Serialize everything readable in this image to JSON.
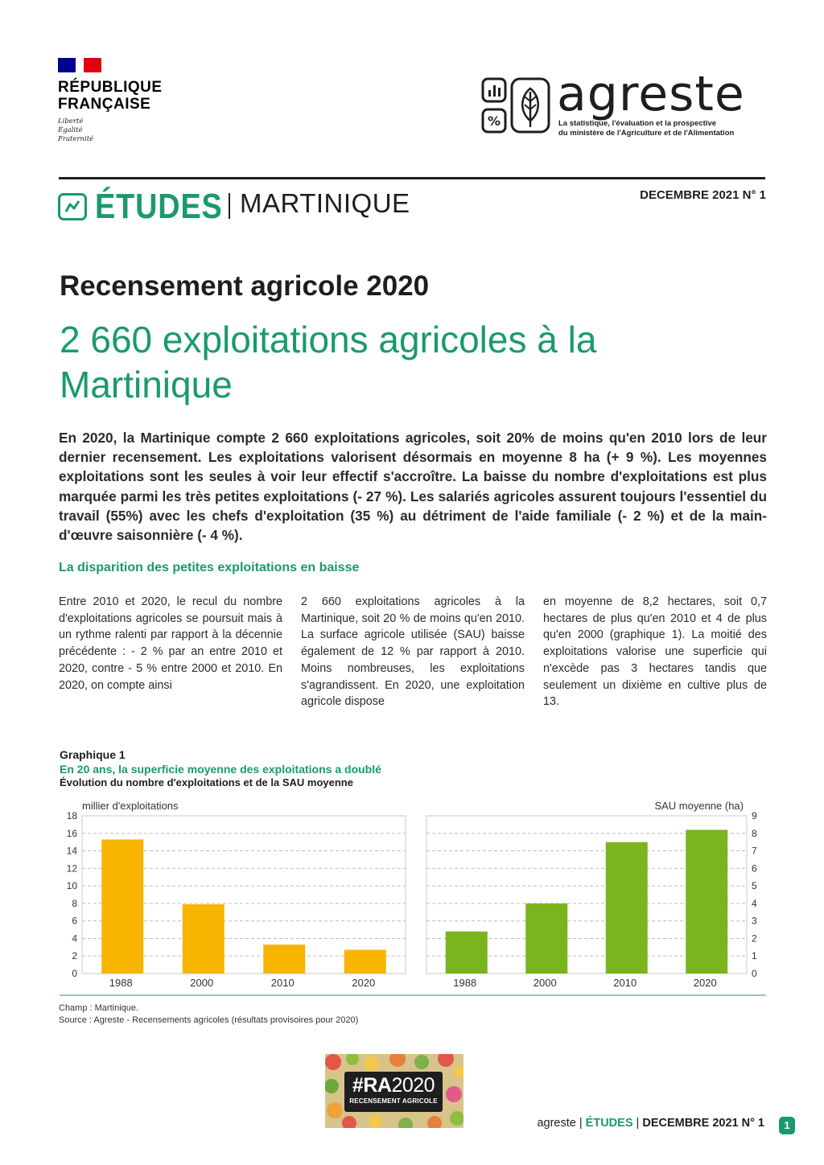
{
  "header": {
    "republic": {
      "line1": "RÉPUBLIQUE",
      "line2": "FRANÇAISE",
      "motto": [
        "Liberté",
        "Égalité",
        "Fraternité"
      ]
    },
    "agreste": {
      "wordmark": "agreste",
      "tagline1": "La statistique, l'évaluation et la prospective",
      "tagline2": "du ministère de l'Agriculture et de l'Alimentation"
    },
    "series": "ÉTUDES",
    "region": "MARTINIQUE",
    "date": "DECEMBRE 2021 N° 1"
  },
  "article": {
    "kicker": "Recensement agricole 2020",
    "headline": "2 660 exploitations agricoles à la Martinique",
    "lead": "En 2020, la Martinique compte 2 660 exploitations agricoles, soit 20% de moins qu'en 2010 lors de leur dernier recensement. Les exploitations valorisent désormais en moyenne 8 ha (+ 9 %). Les moyennes exploitations sont les seules à voir leur effectif s'accroître. La baisse du nombre d'exploitations est plus marquée parmi les très petites exploitations (- 27 %). Les salariés agricoles assurent toujours l'essentiel du travail (55%) avec les chefs d'exploitation (35 %) au détriment de l'aide familiale (- 2 %) et de la main-d'œuvre saisonnière (- 4 %).",
    "section_title": "La disparition des petites exploitations en baisse",
    "columns": [
      "Entre 2010 et 2020, le recul du nombre d'exploitations agricoles se poursuit mais à un rythme ralenti par rapport à la décennie précédente : - 2 % par an entre 2010 et 2020, contre - 5 % entre 2000 et 2010. En 2020, on compte ainsi",
      "2 660 exploitations agricoles à la Martinique, soit 20 % de moins qu'en 2010. La surface agricole utilisée (SAU) baisse également de 12 % par rapport à 2010. Moins nombreuses, les exploitations s'agrandissent. En 2020, une exploitation agricole dispose",
      "en moyenne de 8,2 hectares, soit 0,7 hectares de plus qu'en 2010 et 4 de plus qu'en 2000 (graphique 1). La moitié des exploitations valorise une superficie qui n'excède pas 3 hectares tandis que seulement un dixième en cultive plus de 13."
    ]
  },
  "graph": {
    "label": "Graphique 1",
    "title": "En 20 ans, la superficie moyenne des exploitations a doublé",
    "subtitle": "Évolution du nombre d'exploitations et de la SAU moyenne",
    "note_champ": "Champ : Martinique.",
    "note_source": "Source : Agreste - Recensements agricoles (résultats provisoires pour 2020)"
  },
  "chart_data": [
    {
      "type": "bar",
      "categories": [
        "1988",
        "2000",
        "2010",
        "2020"
      ],
      "values": [
        15.3,
        7.9,
        3.3,
        2.7
      ],
      "ylabel": "millier d'exploitations",
      "ylim": [
        0,
        18
      ],
      "yticks": [
        "0",
        "2",
        "4",
        "6",
        "8",
        "10",
        "12",
        "14",
        "16",
        "18"
      ],
      "color": "#f7b500",
      "grid": true
    },
    {
      "type": "bar",
      "categories": [
        "1988",
        "2000",
        "2010",
        "2020"
      ],
      "values": [
        2.4,
        4.0,
        7.5,
        8.2
      ],
      "ylabel": "SAU moyenne (ha)",
      "ylim": [
        0,
        9
      ],
      "yticks": [
        "0",
        "1",
        "2",
        "3",
        "4",
        "5",
        "6",
        "7",
        "8",
        "9"
      ],
      "color": "#7ab51d",
      "grid": true
    }
  ],
  "ra_logo": {
    "main_bold": "#RA",
    "main_thin": "2020",
    "sub": "RECENSEMENT AGRICOLE"
  },
  "footer": {
    "brand": "agreste",
    "sep": "|",
    "series": "ÉTUDES",
    "date": "DECEMBRE 2021 N° 1",
    "page": "1"
  }
}
